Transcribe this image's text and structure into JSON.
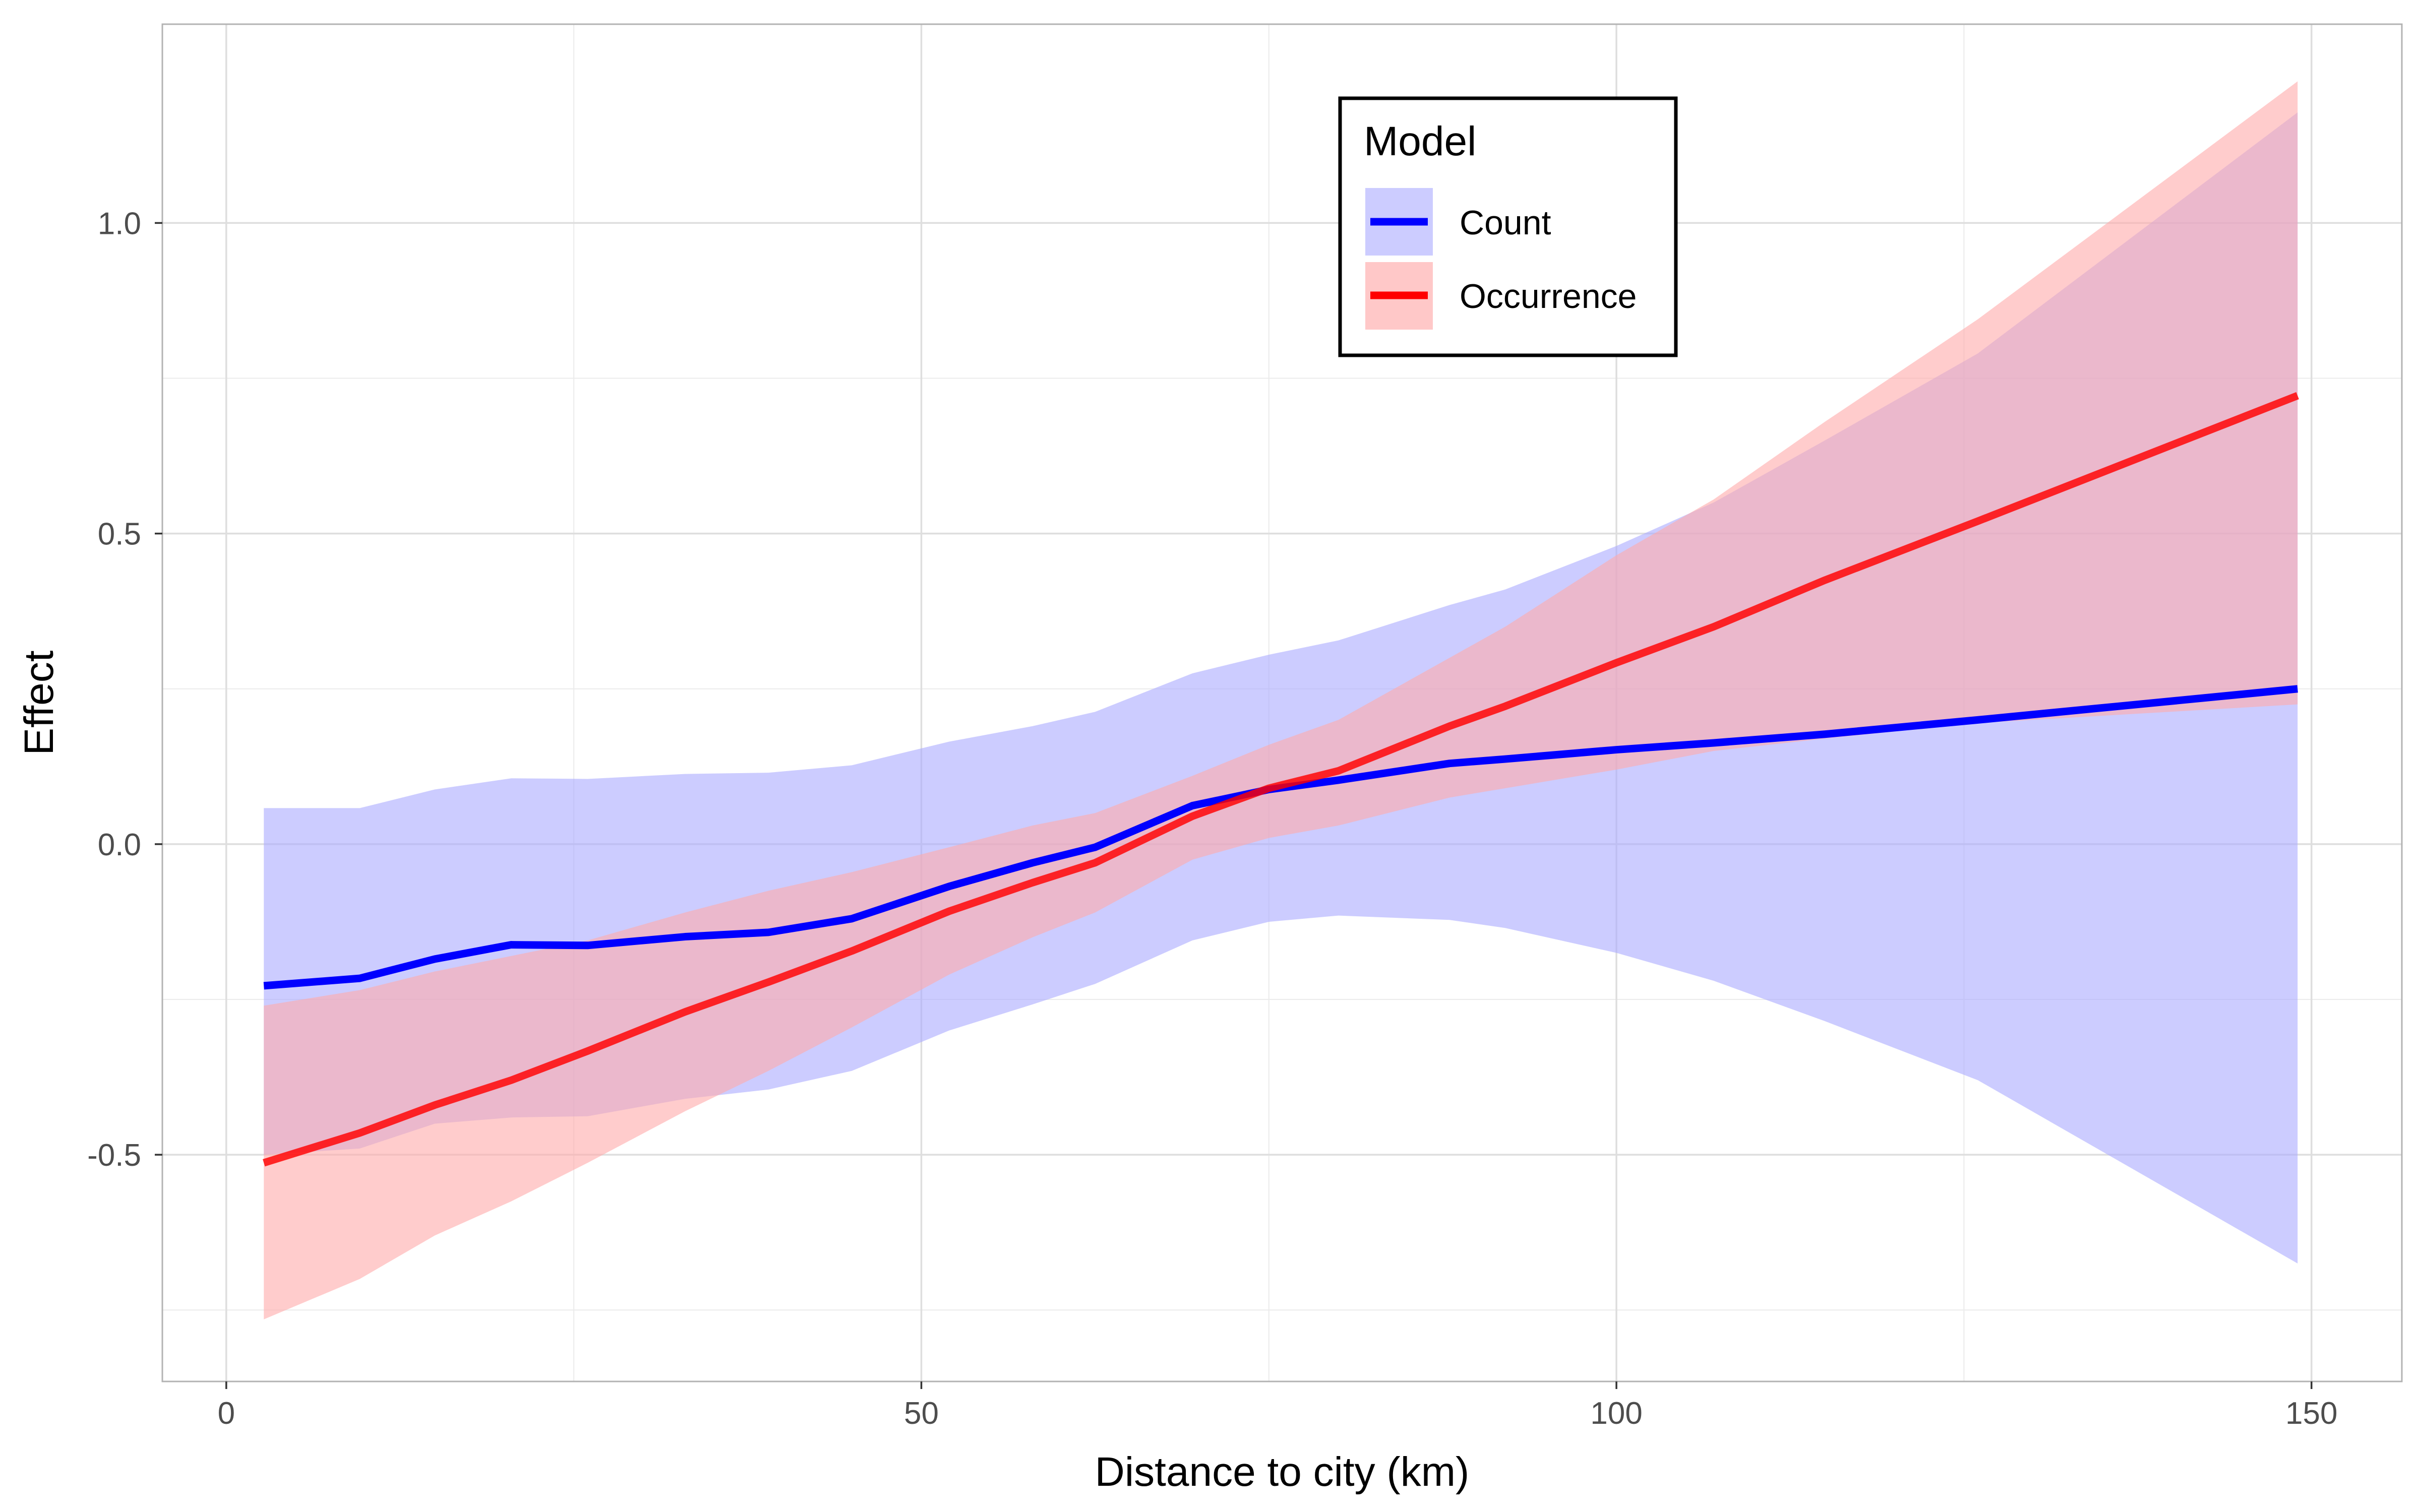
{
  "chart_data": {
    "type": "line",
    "title": "",
    "xlabel": "Distance to city (km)",
    "ylabel": "Effect",
    "xlim": [
      -4.6,
      156.5
    ],
    "ylim": [
      -0.865,
      1.32
    ],
    "x_ticks": [
      0,
      50,
      100,
      150
    ],
    "x_tick_labels": [
      "0",
      "50",
      "100",
      "150"
    ],
    "y_ticks": [
      -0.5,
      0.0,
      0.5,
      1.0
    ],
    "y_tick_labels": [
      "-0.5",
      "0.0",
      "0.5",
      "1.0"
    ],
    "x_minor_ticks": [
      25,
      75,
      125
    ],
    "y_minor_ticks": [
      -0.75,
      -0.25,
      0.25,
      0.75
    ],
    "grid": true,
    "legend": {
      "title": "Model",
      "position": "top-center"
    },
    "series": [
      {
        "name": "Count",
        "color": "#0000ff",
        "ribbon_color": "#aaaaff",
        "x": [
          2.7,
          9.6,
          15,
          20.5,
          26,
          33,
          39,
          45,
          52,
          58,
          62.5,
          69.5,
          75,
          80,
          88,
          92,
          100,
          107,
          115,
          126,
          149
        ],
        "y": [
          -0.228,
          -0.216,
          -0.185,
          -0.162,
          -0.163,
          -0.149,
          -0.142,
          -0.12,
          -0.068,
          -0.03,
          -0.005,
          0.062,
          0.088,
          0.103,
          0.13,
          0.137,
          0.152,
          0.163,
          0.177,
          0.2,
          0.25
        ],
        "lower": [
          -0.5,
          -0.49,
          -0.45,
          -0.44,
          -0.438,
          -0.41,
          -0.395,
          -0.365,
          -0.3,
          -0.258,
          -0.225,
          -0.155,
          -0.125,
          -0.115,
          -0.122,
          -0.135,
          -0.175,
          -0.22,
          -0.285,
          -0.38,
          -0.675
        ],
        "upper": [
          0.058,
          0.058,
          0.088,
          0.106,
          0.105,
          0.113,
          0.115,
          0.127,
          0.165,
          0.19,
          0.213,
          0.275,
          0.305,
          0.328,
          0.385,
          0.41,
          0.48,
          0.55,
          0.65,
          0.79,
          1.178
        ]
      },
      {
        "name": "Occurrence",
        "color": "#ff0000",
        "ribbon_color": "#ffaaaa",
        "x": [
          2.7,
          9.6,
          15,
          20.5,
          26,
          33,
          39,
          45,
          52,
          58,
          62.5,
          69.5,
          75,
          80,
          88,
          92,
          100,
          107,
          115,
          126,
          149
        ],
        "y": [
          -0.513,
          -0.465,
          -0.42,
          -0.38,
          -0.333,
          -0.27,
          -0.222,
          -0.172,
          -0.108,
          -0.062,
          -0.03,
          0.045,
          0.09,
          0.118,
          0.19,
          0.222,
          0.292,
          0.35,
          0.425,
          0.52,
          0.722
        ],
        "lower": [
          -0.765,
          -0.7,
          -0.63,
          -0.575,
          -0.513,
          -0.43,
          -0.365,
          -0.295,
          -0.21,
          -0.15,
          -0.11,
          -0.025,
          0.01,
          0.03,
          0.075,
          0.09,
          0.12,
          0.15,
          0.17,
          0.195,
          0.225
        ],
        "upper": [
          -0.26,
          -0.235,
          -0.205,
          -0.18,
          -0.155,
          -0.11,
          -0.075,
          -0.045,
          -0.005,
          0.03,
          0.05,
          0.11,
          0.16,
          0.2,
          0.3,
          0.35,
          0.465,
          0.555,
          0.68,
          0.845,
          1.228
        ]
      }
    ]
  }
}
